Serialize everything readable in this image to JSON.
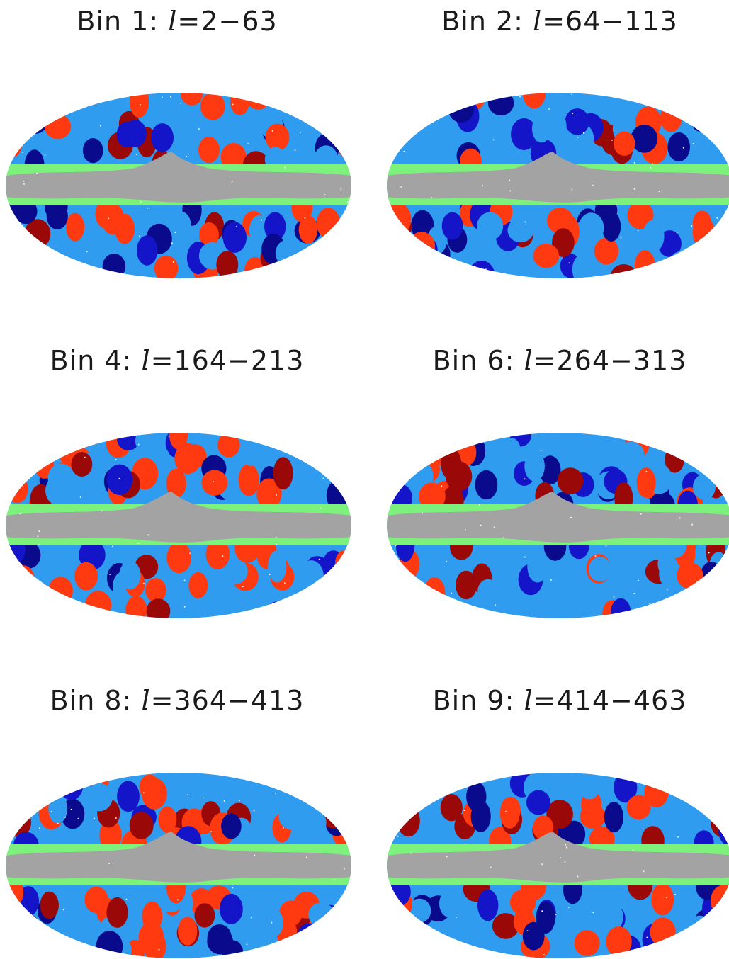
{
  "figure": {
    "palette": {
      "masked": "#a3a3a3",
      "boundary": "#7cf27c",
      "light_blue": "#2f9cf0",
      "dark_blue": "#1414c8",
      "navy": "#0a0a8c",
      "red": "#ff3a10",
      "dark_red": "#9b0808"
    },
    "panels": [
      {
        "bin": "Bin 1:",
        "ell": "l",
        "range": "=2−63"
      },
      {
        "bin": "Bin 2:",
        "ell": "l",
        "range": "=64−113"
      },
      {
        "bin": "Bin 4:",
        "ell": "l",
        "range": "=164−213"
      },
      {
        "bin": "Bin 6:",
        "ell": "l",
        "range": "=264−313"
      },
      {
        "bin": "Bin 8:",
        "ell": "l",
        "range": "=364−413"
      },
      {
        "bin": "Bin 9:",
        "ell": "l",
        "range": "=414−463"
      }
    ]
  }
}
